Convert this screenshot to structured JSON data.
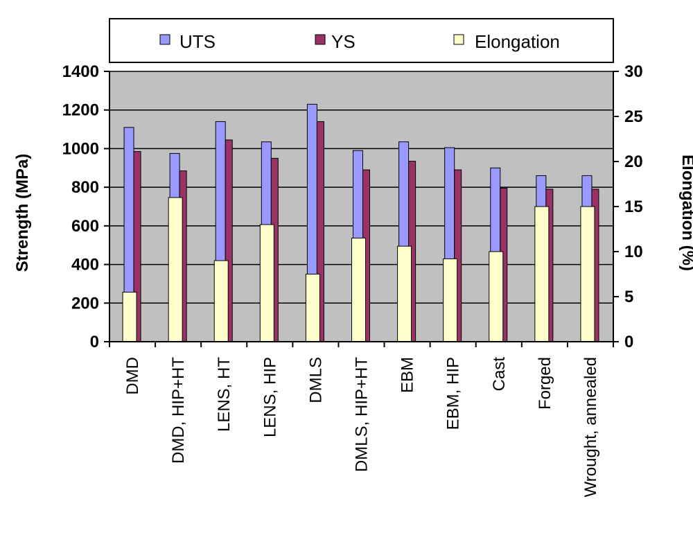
{
  "chart_data": {
    "type": "bar",
    "categories": [
      "DMD",
      "DMD, HIP+HT",
      "LENS, HT",
      "LENS, HIP",
      "DMLS",
      "DMLS, HIP+HT",
      "EBM",
      "EBM, HIP",
      "Cast",
      "Forged",
      "Wrought, annealed"
    ],
    "series": [
      {
        "name": "UTS",
        "axis": "left",
        "color": "#9999ff",
        "values": [
          1110,
          975,
          1140,
          1035,
          1230,
          990,
          1035,
          1005,
          900,
          860,
          860
        ]
      },
      {
        "name": "YS",
        "axis": "left",
        "color": "#993366",
        "values": [
          985,
          885,
          1045,
          950,
          1140,
          890,
          935,
          890,
          795,
          790,
          790
        ]
      },
      {
        "name": "Elongation",
        "axis": "right",
        "color": "#ffffcc",
        "values": [
          5.5,
          16,
          9,
          13,
          7.5,
          11.5,
          10.6,
          9.2,
          10,
          15,
          15
        ]
      }
    ],
    "ylabel": "Strength (MPa)",
    "y2label": "Elongation (%)",
    "ylim": [
      0,
      1400
    ],
    "y2lim": [
      0,
      30
    ],
    "yticks": [
      "0",
      "200",
      "400",
      "600",
      "800",
      "1000",
      "1200",
      "1400"
    ],
    "y2ticks": [
      "0",
      "5",
      "10",
      "15",
      "20",
      "25",
      "30"
    ],
    "grid": true,
    "legend_position": "top",
    "plot_background": "#c0c0c0"
  }
}
